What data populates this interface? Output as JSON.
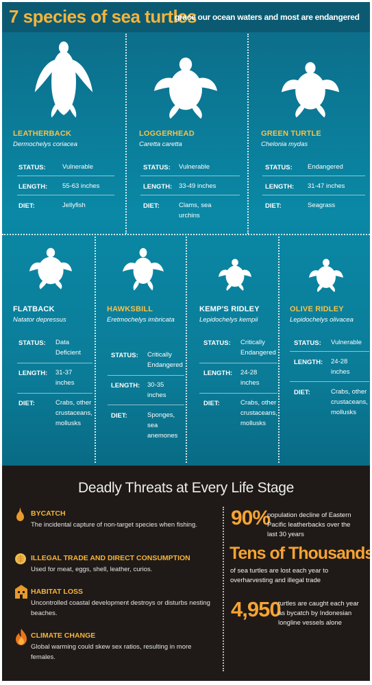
{
  "header": {
    "title": "7 species of sea turtles",
    "subtitle": "grace our ocean waters and most are endangered"
  },
  "labels": {
    "status": "STATUS:",
    "length": "LENGTH:",
    "diet": "DIET:"
  },
  "species": [
    {
      "name": "LEATHERBACK",
      "scientific": "Dermochelys coriacea",
      "status": "Vulnerable",
      "length": "55-63 inches",
      "diet": "Jellyfish"
    },
    {
      "name": "LOGGERHEAD",
      "scientific": "Caretta caretta",
      "status": "Vulnerable",
      "length": "33-49 inches",
      "diet": "Clams, sea urchins"
    },
    {
      "name": "GREEN TURTLE",
      "scientific": "Chelonia mydas",
      "status": "Endangered",
      "length": "31-47 inches",
      "diet": "Seagrass"
    },
    {
      "name": "FLATBACK",
      "scientific": "Natator depressus",
      "status": "Data Deficient",
      "length": "31-37 inches",
      "diet": "Crabs, other crustaceans, mollusks"
    },
    {
      "name": "HAWKSBILL",
      "scientific": "Eretmochelys imbricata",
      "status": "Critically Endangered",
      "length": "30-35 inches",
      "diet": "Sponges, sea anemones"
    },
    {
      "name": "KEMP'S RIDLEY",
      "scientific": "Lepidochelys kempii",
      "status": "Critically Endangered",
      "length": "24-28 inches",
      "diet": "Crabs, other crustaceans, mollusks"
    },
    {
      "name": "OLIVE RIDLEY",
      "scientific": "Lepidochelys olivacea",
      "status": "Vulnerable",
      "length": "24-28 inches",
      "diet": "Crabs, other crustaceans, mollusks"
    }
  ],
  "threats": {
    "title": "Deadly Threats at Every Life Stage",
    "items": [
      {
        "heading": "BYCATCH",
        "description": "The incidental capture of non-target species when fishing.",
        "icon": "hook-icon"
      },
      {
        "heading": "ILLEGAL TRADE AND DIRECT CONSUMPTION",
        "description": "Used for meat, eggs, shell, leather, curios.",
        "icon": "shell-icon"
      },
      {
        "heading": "HABITAT LOSS",
        "description": "Uncontrolled coastal development destroys or disturbs nesting beaches.",
        "icon": "building-icon"
      },
      {
        "heading": "CLIMATE CHANGE",
        "description": "Global warming could skew sex ratios, resulting in more females.",
        "icon": "flame-icon"
      }
    ]
  },
  "stats": [
    {
      "number": "90%",
      "text": "population decline of Eastern Pacific leatherbacks over the last 30 years"
    },
    {
      "number": "Tens of Thousands",
      "text": "of sea turtles are lost each year to overharvesting and illegal trade"
    },
    {
      "number": "4,950",
      "text": "turtles are caught each year as bycatch by Indonesian longline vessels alone"
    }
  ],
  "colors": {
    "accent": "#f6b43b",
    "teal": "#0a88a5",
    "dark": "#1f1a17"
  }
}
